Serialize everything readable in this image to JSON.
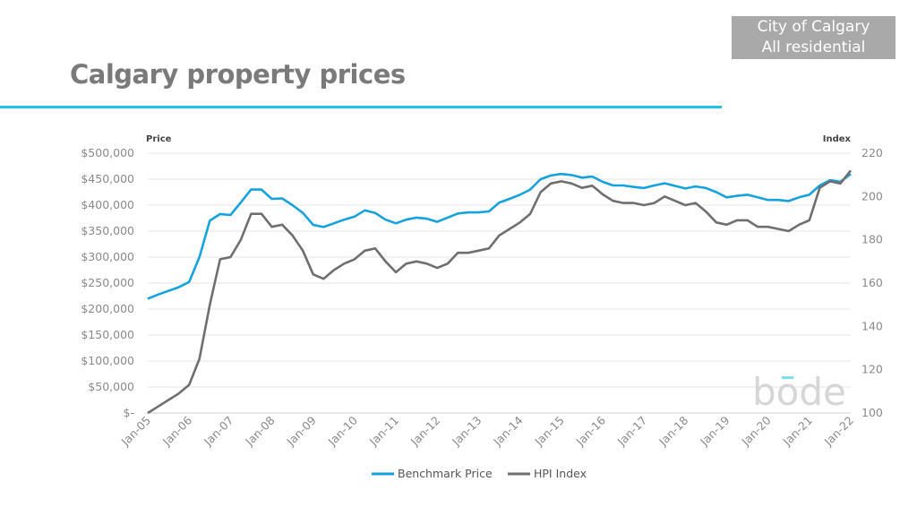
{
  "header": {
    "title": "Calgary property prices",
    "badge_line1": "City of Calgary",
    "badge_line2": "All residential"
  },
  "logo": {
    "text": "bode",
    "accent": "#7fdcf2"
  },
  "chart_data": {
    "type": "line",
    "title": "",
    "ylabel": "Price",
    "y2label": "Index",
    "ylim": [
      0,
      500000
    ],
    "y2lim": [
      100,
      220
    ],
    "yticks": [
      "$-",
      "$50,000",
      "$100,000",
      "$150,000",
      "$200,000",
      "$250,000",
      "$300,000",
      "$350,000",
      "$400,000",
      "$450,000",
      "$500,000"
    ],
    "y2ticks": [
      "100",
      "120",
      "140",
      "160",
      "180",
      "200",
      "220"
    ],
    "xticks": [
      "Jan-05",
      "Jan-06",
      "Jan-07",
      "Jan-08",
      "Jan-09",
      "Jan-10",
      "Jan-11",
      "Jan-12",
      "Jan-13",
      "Jan-14",
      "Jan-15",
      "Jan-16",
      "Jan-17",
      "Jan-18",
      "Jan-19",
      "Jan-20",
      "Jan-21",
      "Jan-22"
    ],
    "grid": true,
    "legend_position": "bottom",
    "x": [
      "2005-01",
      "2005-04",
      "2005-07",
      "2005-10",
      "2006-01",
      "2006-04",
      "2006-07",
      "2006-10",
      "2007-01",
      "2007-04",
      "2007-07",
      "2007-10",
      "2008-01",
      "2008-04",
      "2008-07",
      "2008-10",
      "2009-01",
      "2009-04",
      "2009-07",
      "2009-10",
      "2010-01",
      "2010-04",
      "2010-07",
      "2010-10",
      "2011-01",
      "2011-04",
      "2011-07",
      "2011-10",
      "2012-01",
      "2012-04",
      "2012-07",
      "2012-10",
      "2013-01",
      "2013-04",
      "2013-07",
      "2013-10",
      "2014-01",
      "2014-04",
      "2014-07",
      "2014-10",
      "2015-01",
      "2015-04",
      "2015-07",
      "2015-10",
      "2016-01",
      "2016-04",
      "2016-07",
      "2016-10",
      "2017-01",
      "2017-04",
      "2017-07",
      "2017-10",
      "2018-01",
      "2018-04",
      "2018-07",
      "2018-10",
      "2019-01",
      "2019-04",
      "2019-07",
      "2019-10",
      "2020-01",
      "2020-04",
      "2020-07",
      "2020-10",
      "2021-01",
      "2021-04",
      "2021-07",
      "2021-10",
      "2022-01"
    ],
    "series": [
      {
        "name": "Benchmark Price",
        "axis": "left",
        "color": "#16a2dc",
        "values": [
          220000,
          228000,
          235000,
          242000,
          252000,
          300000,
          370000,
          383000,
          381000,
          405000,
          430000,
          430000,
          412000,
          413000,
          400000,
          385000,
          362000,
          358000,
          365000,
          372000,
          378000,
          390000,
          385000,
          372000,
          365000,
          372000,
          376000,
          374000,
          368000,
          376000,
          384000,
          386000,
          386000,
          388000,
          405000,
          412000,
          420000,
          430000,
          450000,
          457000,
          460000,
          458000,
          453000,
          455000,
          445000,
          438000,
          438000,
          435000,
          433000,
          438000,
          442000,
          437000,
          432000,
          436000,
          433000,
          425000,
          415000,
          418000,
          420000,
          415000,
          410000,
          410000,
          408000,
          415000,
          420000,
          438000,
          448000,
          445000,
          460000
        ]
      },
      {
        "name": "HPI Index",
        "axis": "right",
        "color": "#6f6f6f",
        "values": [
          100,
          103,
          106,
          109,
          113,
          125,
          150,
          171,
          172,
          180,
          192,
          192,
          186,
          187,
          182,
          175,
          164,
          162,
          166,
          169,
          171,
          175,
          176,
          170,
          165,
          169,
          170,
          169,
          167,
          169,
          174,
          174,
          175,
          176,
          182,
          185,
          188,
          192,
          202,
          206,
          207,
          206,
          204,
          205,
          201,
          198,
          197,
          197,
          196,
          197,
          200,
          198,
          196,
          197,
          193,
          188,
          187,
          189,
          189,
          186,
          186,
          185,
          184,
          187,
          189,
          204,
          207,
          206,
          212
        ]
      }
    ]
  }
}
